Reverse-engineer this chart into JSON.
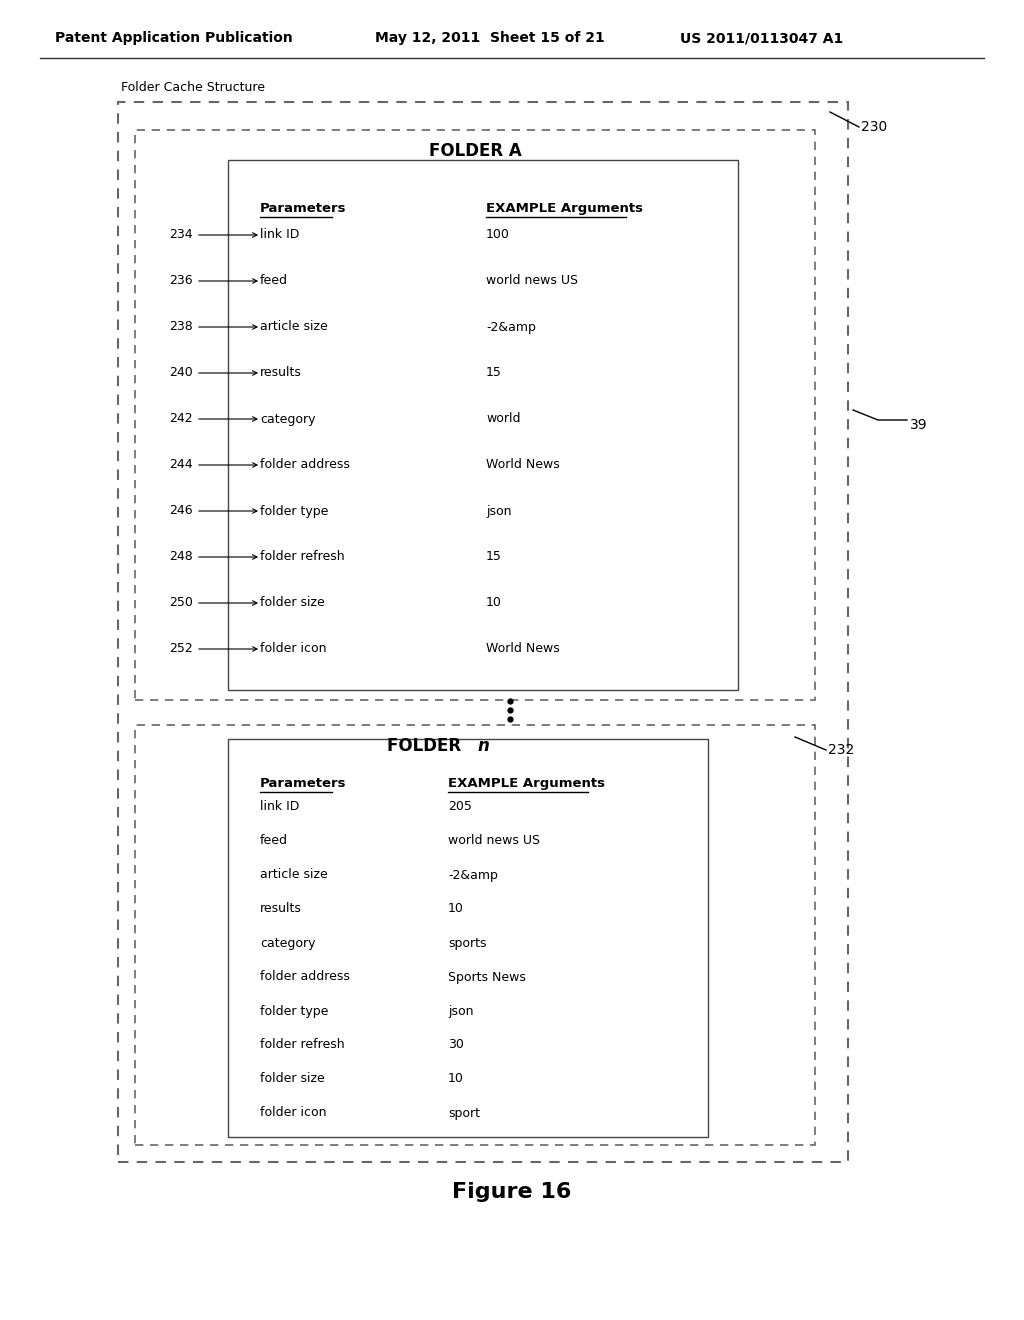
{
  "header_left": "Patent Application Publication",
  "header_mid": "May 12, 2011  Sheet 15 of 21",
  "header_right": "US 2011/0113047 A1",
  "figure_label": "Figure 16",
  "folder_cache_label": "Folder Cache Structure",
  "folder_a_label": "FOLDER A",
  "folder_n_label": "FOLDER n",
  "ref_230": "230",
  "ref_232": "232",
  "ref_39": "39",
  "folder_a_ref_numbers": [
    "234",
    "236",
    "238",
    "240",
    "242",
    "244",
    "246",
    "248",
    "250",
    "252"
  ],
  "folder_a_params": [
    "link ID",
    "feed",
    "article size",
    "results",
    "category",
    "folder address",
    "folder type",
    "folder refresh",
    "folder size",
    "folder icon"
  ],
  "folder_a_args": [
    "100",
    "world news US",
    "-2&amp",
    "15",
    "world",
    "World News",
    "json",
    "15",
    "10",
    "World News"
  ],
  "folder_n_params": [
    "link ID",
    "feed",
    "article size",
    "results",
    "category",
    "folder address",
    "folder type",
    "folder refresh",
    "folder size",
    "folder icon"
  ],
  "folder_n_args": [
    "205",
    "world news US",
    "-2&amp",
    "10",
    "sports",
    "Sports News",
    "json",
    "30",
    "10",
    "sport"
  ],
  "col_header_params": "Parameters",
  "col_header_args": "EXAMPLE Arguments",
  "bg_color": "#ffffff",
  "text_color": "#000000"
}
